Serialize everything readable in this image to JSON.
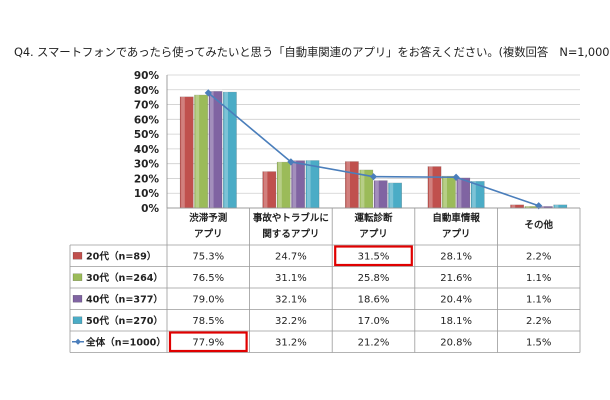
{
  "title": "Q4. スマートフォンであったら使ってみたいと思う「自動車関連のアプリ」をお答えください。(複数回答　N=1,000)",
  "chart_data": {
    "type": "bar",
    "categories": [
      [
        "渋滞予測",
        "アプリ"
      ],
      [
        "事故やトラブルに",
        "関するアプリ"
      ],
      [
        "運転診断",
        "アプリ"
      ],
      [
        "自動車情報",
        "アプリ"
      ],
      [
        "その他",
        ""
      ]
    ],
    "yticks": [
      "0%",
      "10%",
      "20%",
      "30%",
      "40%",
      "50%",
      "60%",
      "70%",
      "80%",
      "90%"
    ],
    "ylim": [
      0,
      90
    ],
    "grid": true,
    "series": [
      {
        "name": "20代（n=89）",
        "kind": "bar",
        "color": "#c0504d",
        "values": [
          75.3,
          24.7,
          31.5,
          28.1,
          2.2
        ],
        "labels": [
          "75.3%",
          "24.7%",
          "31.5%",
          "28.1%",
          "2.2%"
        ]
      },
      {
        "name": "30代（n=264）",
        "kind": "bar",
        "color": "#9bbb59",
        "values": [
          76.5,
          31.1,
          25.8,
          21.6,
          1.1
        ],
        "labels": [
          "76.5%",
          "31.1%",
          "25.8%",
          "21.6%",
          "1.1%"
        ]
      },
      {
        "name": "40代（n=377）",
        "kind": "bar",
        "color": "#8064a2",
        "values": [
          79.0,
          32.1,
          18.6,
          20.4,
          1.1
        ],
        "labels": [
          "79.0%",
          "32.1%",
          "18.6%",
          "20.4%",
          "1.1%"
        ]
      },
      {
        "name": "50代（n=270）",
        "kind": "bar",
        "color": "#4bacc6",
        "values": [
          78.5,
          32.2,
          17.0,
          18.1,
          2.2
        ],
        "labels": [
          "78.5%",
          "32.2%",
          "17.0%",
          "18.1%",
          "2.2%"
        ]
      },
      {
        "name": "全体（n=1000）",
        "kind": "line",
        "color": "#4a7ebb",
        "values": [
          77.9,
          31.2,
          21.2,
          20.8,
          1.5
        ],
        "labels": [
          "77.9%",
          "31.2%",
          "21.2%",
          "20.8%",
          "1.5%"
        ]
      }
    ],
    "highlighted_cells": [
      {
        "series": 0,
        "category": 2
      },
      {
        "series": 4,
        "category": 0
      }
    ],
    "highlight_color": "#e00000"
  }
}
